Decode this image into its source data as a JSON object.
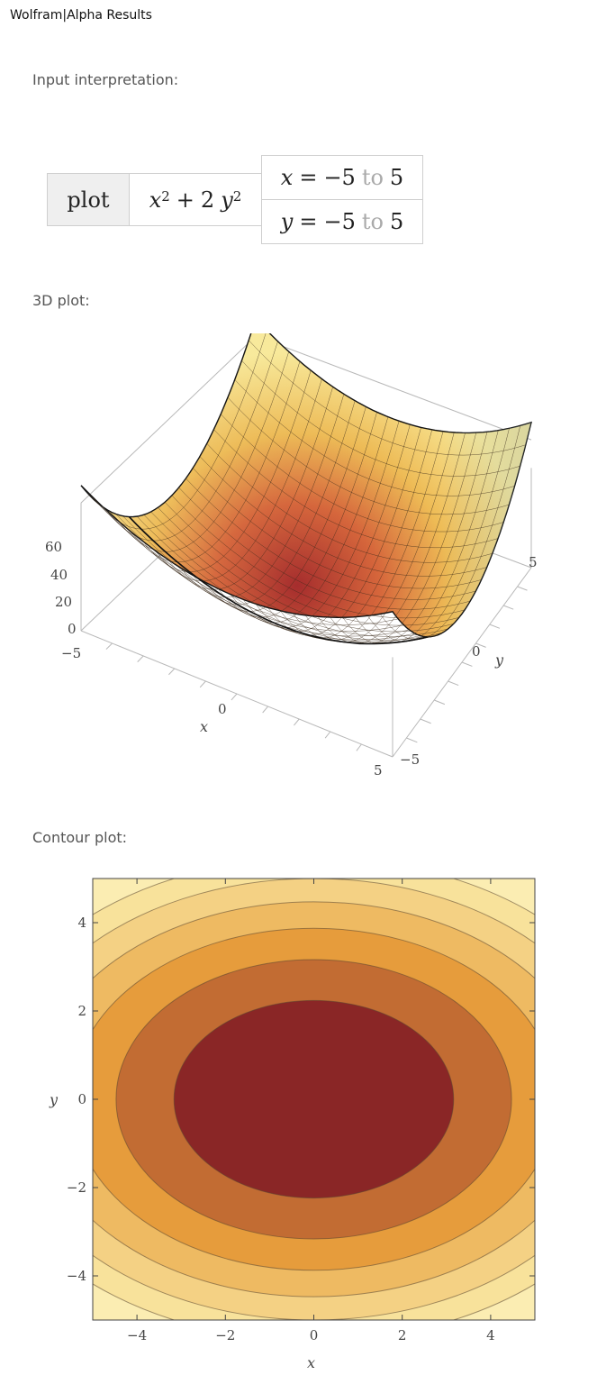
{
  "window": {
    "title": "Wolfram|Alpha Results"
  },
  "pods": {
    "input": {
      "title": "Input interpretation:",
      "command": "plot",
      "function": {
        "base_x": "x",
        "exp_x": "2",
        "plus": "+",
        "coef": "2",
        "base_y": "y",
        "exp_y": "2"
      },
      "x_range": {
        "var": "x",
        "eq": "=",
        "from": "−5",
        "to_word": "to",
        "to": "5"
      },
      "y_range": {
        "var": "y",
        "eq": "=",
        "from": "−5",
        "to_word": "to",
        "to": "5"
      }
    },
    "plot3d": {
      "title": "3D plot:",
      "z_ticks": [
        "60",
        "40",
        "20",
        "0"
      ],
      "x_ticks": [
        "−5",
        "0",
        "5"
      ],
      "y_ticks": [
        "−5",
        "0",
        "5"
      ],
      "x_label": "x",
      "y_label": "y"
    },
    "contour": {
      "title": "Contour plot:"
    }
  },
  "chart_data": [
    {
      "type": "surface",
      "function": "x^2 + 2 y^2",
      "x_range": [
        -5,
        5
      ],
      "y_range": [
        -5,
        5
      ],
      "z_ticks": [
        0,
        20,
        40,
        60
      ],
      "xlabel": "x",
      "ylabel": "y",
      "colors": {
        "low": "#8b1a1a",
        "mid": "#e8a040",
        "high": "#fbe9a6"
      }
    },
    {
      "type": "contour",
      "function": "x^2 + 2 y^2",
      "x_range": [
        -5,
        5
      ],
      "y_range": [
        -5,
        5
      ],
      "x_ticks": [
        -4,
        -2,
        0,
        2,
        4
      ],
      "y_ticks": [
        -4,
        -2,
        0,
        2,
        4
      ],
      "xlabel": "x",
      "ylabel": "y",
      "levels": [
        10,
        20,
        30,
        40,
        50,
        60
      ],
      "colors": [
        "#8a2626",
        "#c26c33",
        "#e69c3c",
        "#eeba62",
        "#f4d184",
        "#f8e29b",
        "#fbedb2"
      ]
    }
  ]
}
